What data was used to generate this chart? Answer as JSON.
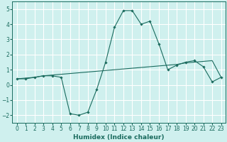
{
  "x": [
    0,
    1,
    2,
    3,
    4,
    5,
    6,
    7,
    8,
    9,
    10,
    11,
    12,
    13,
    14,
    15,
    16,
    17,
    18,
    19,
    20,
    21,
    22,
    23
  ],
  "y_curve": [
    0.4,
    0.4,
    0.5,
    0.6,
    0.6,
    0.5,
    -1.9,
    -2.0,
    -1.8,
    -0.3,
    1.5,
    3.8,
    4.9,
    4.9,
    4.0,
    4.2,
    2.7,
    1.0,
    1.3,
    1.5,
    1.6,
    1.2,
    0.2,
    0.5
  ],
  "y_line": [
    0.4,
    0.45,
    0.5,
    0.6,
    0.65,
    0.7,
    0.75,
    0.8,
    0.85,
    0.9,
    0.95,
    1.0,
    1.05,
    1.1,
    1.15,
    1.2,
    1.25,
    1.3,
    1.35,
    1.45,
    1.5,
    1.55,
    1.6,
    0.5
  ],
  "line_color": "#1a6b5e",
  "bg_color": "#cff0ee",
  "grid_color": "#ffffff",
  "ylim": [
    -2.5,
    5.5
  ],
  "yticks": [
    -2,
    -1,
    0,
    1,
    2,
    3,
    4,
    5
  ],
  "xlabel": "Humidex (Indice chaleur)",
  "xlabel_fontsize": 6.5,
  "tick_fontsize": 5.5
}
